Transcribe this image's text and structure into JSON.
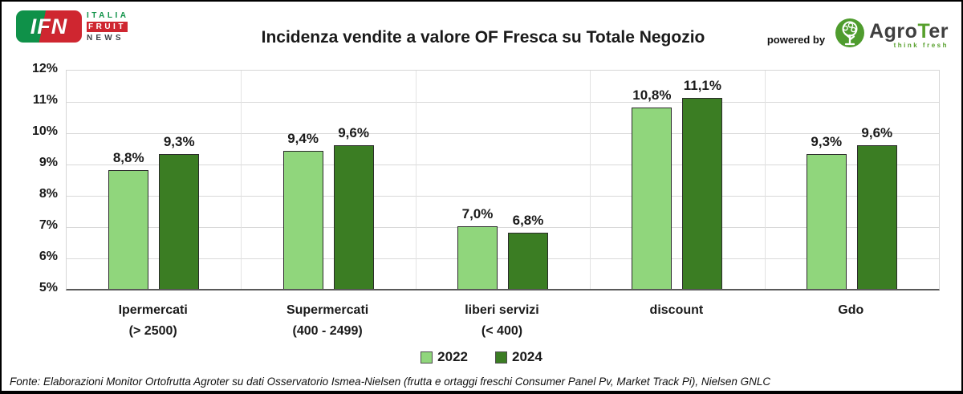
{
  "header": {
    "ifn_logo": {
      "acronym": "IFN",
      "italia": "ITALIA",
      "fruit": "FRUIT",
      "news": "NEWS"
    },
    "powered_by": "powered by",
    "agroter_logo": {
      "name_part1": "Agro",
      "name_part2": "T",
      "name_part3": "er",
      "tagline": "think fresh"
    }
  },
  "chart_data": {
    "type": "bar",
    "title": "Incidenza vendite a valore OF Fresca su Totale Negozio",
    "categories": [
      {
        "line1": "Ipermercati",
        "line2": "(> 2500)"
      },
      {
        "line1": "Supermercati",
        "line2": "(400 - 2499)"
      },
      {
        "line1": "liberi servizi",
        "line2": "(< 400)"
      },
      {
        "line1": "discount",
        "line2": ""
      },
      {
        "line1": "Gdo",
        "line2": ""
      }
    ],
    "series": [
      {
        "name": "2022",
        "color": "#90d67c",
        "values": [
          8.8,
          9.4,
          7.0,
          10.8,
          9.3
        ],
        "value_labels": [
          "8,8%",
          "9,4%",
          "7,0%",
          "10,8%",
          "9,3%"
        ]
      },
      {
        "name": "2024",
        "color": "#3b7d23",
        "values": [
          9.3,
          9.6,
          6.8,
          11.1,
          9.6
        ],
        "value_labels": [
          "9,3%",
          "9,6%",
          "6,8%",
          "11,1%",
          "9,6%"
        ]
      }
    ],
    "y_axis": {
      "min": 5,
      "max": 12,
      "step": 1,
      "tick_labels": [
        "5%",
        "6%",
        "7%",
        "8%",
        "9%",
        "10%",
        "11%",
        "12%"
      ]
    },
    "grid": true,
    "legend_position": "bottom",
    "colors": {
      "gridline": "#d9d9d9",
      "axis_line": "#595959",
      "bar_border": "#2b2b2b",
      "text": "#1a1a1a"
    }
  },
  "footer": {
    "source": "Fonte: Elaborazioni Monitor Ortofrutta Agroter su dati Osservatorio Ismea-Nielsen (frutta e ortaggi freschi  Consumer Panel Pv, Market Track Pi), Nielsen GNLC"
  }
}
